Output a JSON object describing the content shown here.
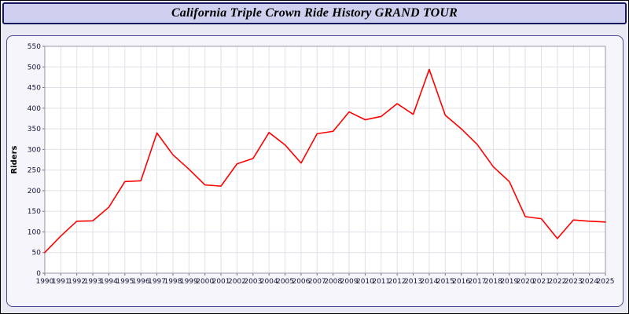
{
  "page": {
    "title": "California Triple Crown Ride History GRAND TOUR"
  },
  "chart_data": {
    "type": "line",
    "title": "California Triple Crown Ride History GRAND TOUR",
    "x": [
      1990,
      1991,
      1992,
      1993,
      1994,
      1995,
      1996,
      1997,
      1998,
      1999,
      2000,
      2001,
      2002,
      2003,
      2004,
      2005,
      2006,
      2007,
      2008,
      2009,
      2010,
      2011,
      2012,
      2013,
      2014,
      2015,
      2016,
      2017,
      2018,
      2019,
      2020,
      2021,
      2022,
      2023,
      2024,
      2025
    ],
    "series": [
      {
        "name": "Riders",
        "color": "#ff0000",
        "values": [
          50,
          90,
          126,
          127,
          160,
          222,
          224,
          340,
          287,
          252,
          214,
          211,
          265,
          278,
          341,
          311,
          267,
          338,
          344,
          391,
          372,
          380,
          411,
          385,
          494,
          383,
          350,
          312,
          258,
          222,
          137,
          132,
          84,
          129,
          126,
          124
        ]
      }
    ],
    "xlabel": "",
    "ylabel": "Riders",
    "ylim": [
      0,
      550
    ],
    "ytick_step": 50,
    "grid": true,
    "legend": "none",
    "plot_background": "#ffffff",
    "grid_color": "#e0e0e8"
  }
}
